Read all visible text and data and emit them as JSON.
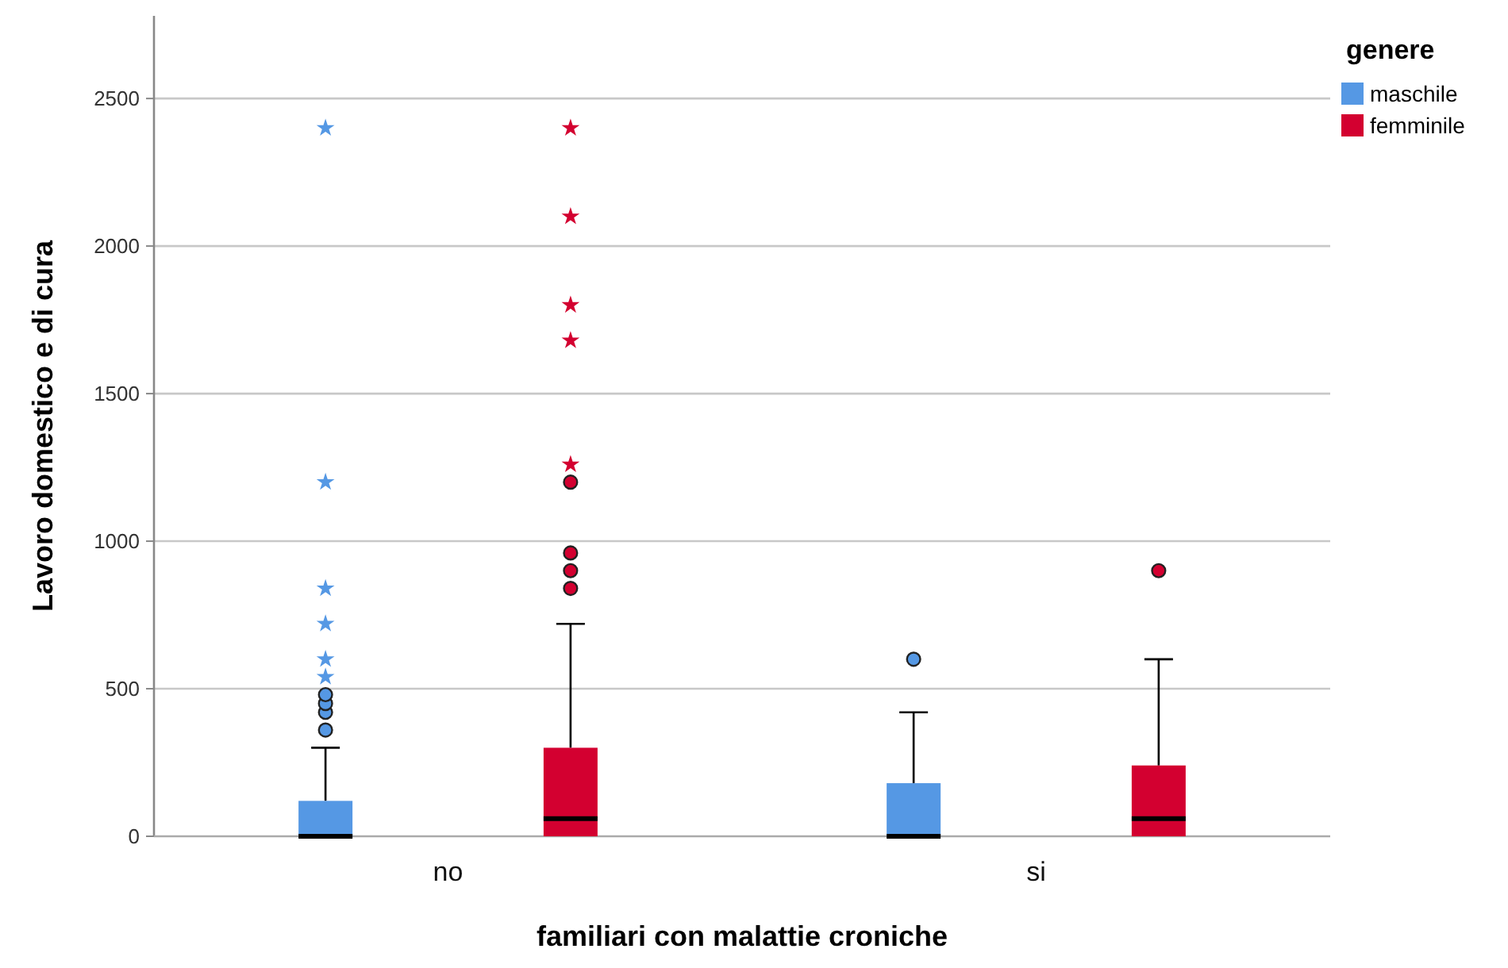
{
  "chart_data": {
    "type": "box",
    "xlabel": "familiari con malattie croniche",
    "ylabel": "Lavoro domestico e di cura",
    "legend_title": "genere",
    "categories": [
      "no",
      "si"
    ],
    "series": [
      {
        "name": "maschile",
        "color": "#5598e4",
        "boxes": [
          {
            "q1": 0,
            "median": 0,
            "q3": 120,
            "high": 300,
            "outliers": [
              360,
              420,
              450,
              480,
              540,
              600,
              720,
              840,
              1200,
              2400
            ]
          },
          {
            "q1": 0,
            "median": 0,
            "q3": 180,
            "high": 420,
            "outliers": [
              600
            ]
          }
        ]
      },
      {
        "name": "femminile",
        "color": "#d30030",
        "boxes": [
          {
            "q1": 0,
            "median": 60,
            "q3": 300,
            "high": 720,
            "outliers": [
              840,
              900,
              960,
              1200,
              1260,
              1680,
              1800,
              2100,
              2400
            ]
          },
          {
            "q1": 0,
            "median": 60,
            "q3": 240,
            "high": 600,
            "outliers": [
              900
            ]
          }
        ]
      }
    ],
    "ylim": [
      0,
      2780
    ],
    "yticks": [
      0,
      500,
      1000,
      1500,
      2000,
      2500
    ],
    "grid": "y",
    "legend": "top right"
  }
}
